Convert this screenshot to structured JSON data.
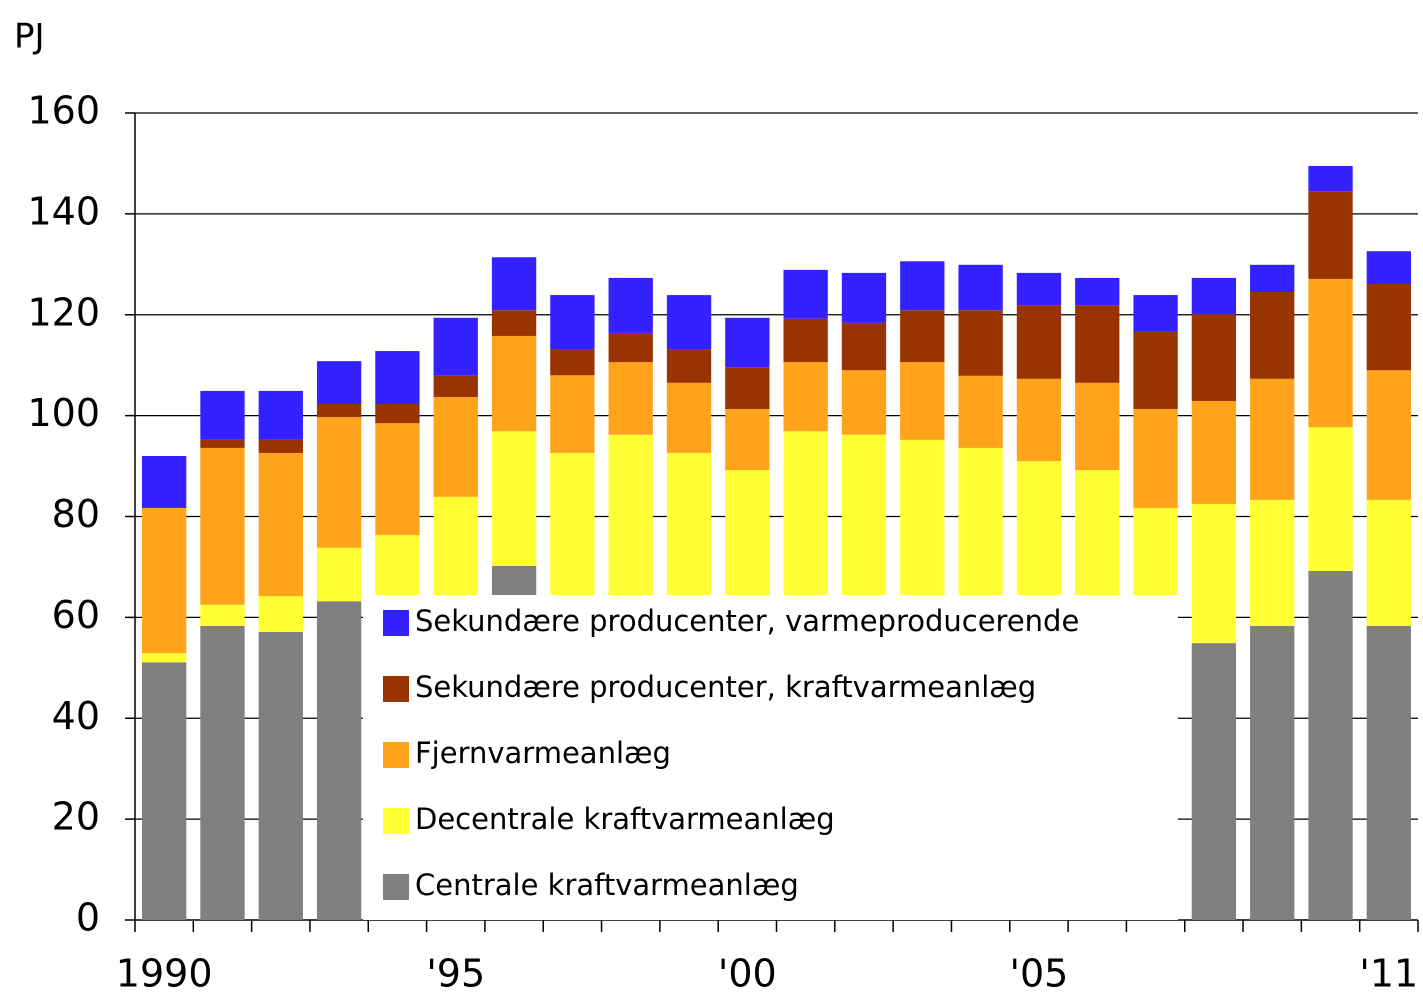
{
  "chart_data": {
    "type": "stacked_bar",
    "y_label": "PJ",
    "categories": [
      "1990",
      null,
      null,
      null,
      null,
      "'95",
      null,
      null,
      null,
      null,
      "'00",
      null,
      null,
      null,
      null,
      "'05",
      null,
      null,
      null,
      null,
      null,
      "'11"
    ],
    "series": [
      {
        "name": "Centrale kraftvarmeanlæg",
        "color": "#808080",
        "values": [
          51.1,
          58.3,
          57.1,
          63.2,
          62,
          58,
          70.2,
          54,
          56,
          50,
          48,
          53,
          50,
          52,
          49,
          47,
          46,
          44,
          54.9,
          58.3,
          69.2,
          58.3
        ]
      },
      {
        "name": "Decentrale kraftvarmeanlæg",
        "color": "#ffff33",
        "values": [
          1.8,
          4.2,
          7.1,
          10.6,
          14.3,
          25.9,
          26.7,
          38.6,
          40.2,
          42.6,
          41.2,
          43.9,
          46.2,
          43.2,
          44.6,
          44.0,
          43.2,
          37.7,
          27.6,
          25.0,
          28.5,
          25.0
        ]
      },
      {
        "name": "Fjernvarmeanlæg",
        "color": "#ffa31a",
        "values": [
          28.8,
          31.1,
          28.4,
          25.9,
          22.2,
          19.8,
          18.9,
          15.4,
          14.4,
          13.9,
          12.1,
          13.7,
          12.8,
          15.4,
          14.3,
          16.3,
          17.3,
          19.6,
          20.4,
          24.0,
          29.4,
          25.7
        ]
      },
      {
        "name": "Sekundære producenter, kraftvarmeanlæg",
        "color": "#993300",
        "values": [
          0,
          1.6,
          2.6,
          2.6,
          3.8,
          4.2,
          5.1,
          5.2,
          5.8,
          6.7,
          8.3,
          8.6,
          9.4,
          10.3,
          13.0,
          14.6,
          15.4,
          15.3,
          17.2,
          17.2,
          17.4,
          17.1
        ]
      },
      {
        "name": "Sekundære producenter, varmeproducerende",
        "color": "#3322ff",
        "values": [
          10.3,
          9.7,
          9.7,
          8.5,
          10.5,
          11.5,
          10.5,
          10.7,
          10.9,
          10.7,
          9.8,
          9.7,
          9.9,
          9.7,
          9.0,
          6.4,
          5.4,
          7.3,
          7.2,
          5.4,
          5.0,
          6.5
        ]
      }
    ],
    "ylim": [
      0,
      160
    ],
    "yticks": [
      0,
      20,
      40,
      60,
      80,
      100,
      120,
      140,
      160
    ],
    "grid": true,
    "legend": "lower center"
  }
}
